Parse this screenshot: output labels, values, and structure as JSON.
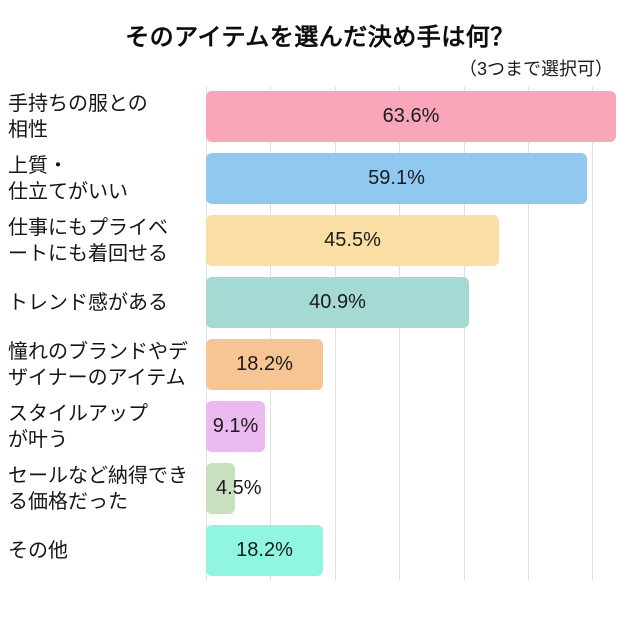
{
  "chart_data": {
    "type": "bar",
    "orientation": "horizontal",
    "title": "そのアイテムを選んだ決め手は何？",
    "subtitle": "（3つまで選択可）",
    "unit": "%",
    "value_label_position": "inside-center",
    "grid": true,
    "gridline_color": "#e0e0e0",
    "axis": {
      "min": 0,
      "max": 65,
      "gridline_step": 10,
      "tick_labels_visible": false
    },
    "categories": [
      "手持ちの服との相性",
      "上質・仕立てがいい",
      "仕事にもプライベートにも着回せる",
      "トレンド感がある",
      "憧れのブランドやデザイナーのアイテム",
      "スタイルアップが叶う",
      "セールなど納得できる価格だった",
      "その他"
    ],
    "values": [
      63.6,
      59.1,
      45.5,
      40.9,
      18.2,
      9.1,
      4.5,
      18.2
    ],
    "bars": [
      {
        "label_lines": "手持ちの服との\n相性",
        "value": 63.6,
        "display": "63.6%",
        "color": "#F9A6BB"
      },
      {
        "label_lines": "上質・\n仕立てがいい",
        "value": 59.1,
        "display": "59.1%",
        "color": "#90C8F0"
      },
      {
        "label_lines": "仕事にもプライベ\nートにも着回せる",
        "value": 45.5,
        "display": "45.5%",
        "color": "#FADFA4"
      },
      {
        "label_lines": "トレンド感がある",
        "value": 40.9,
        "display": "40.9%",
        "color": "#A5DAD4"
      },
      {
        "label_lines": "憧れのブランドやデ\nザイナーのアイテム",
        "value": 18.2,
        "display": "18.2%",
        "color": "#F7C593"
      },
      {
        "label_lines": "スタイルアップ\nが叶う",
        "value": 9.1,
        "display": "9.1%",
        "color": "#E9B9F0"
      },
      {
        "label_lines": "セールなど納得でき\nる価格だった",
        "value": 4.5,
        "display": "4.5%",
        "color": "#C8E0C0"
      },
      {
        "label_lines": "その他",
        "value": 18.2,
        "display": "18.2%",
        "color": "#90F5E1"
      }
    ]
  }
}
